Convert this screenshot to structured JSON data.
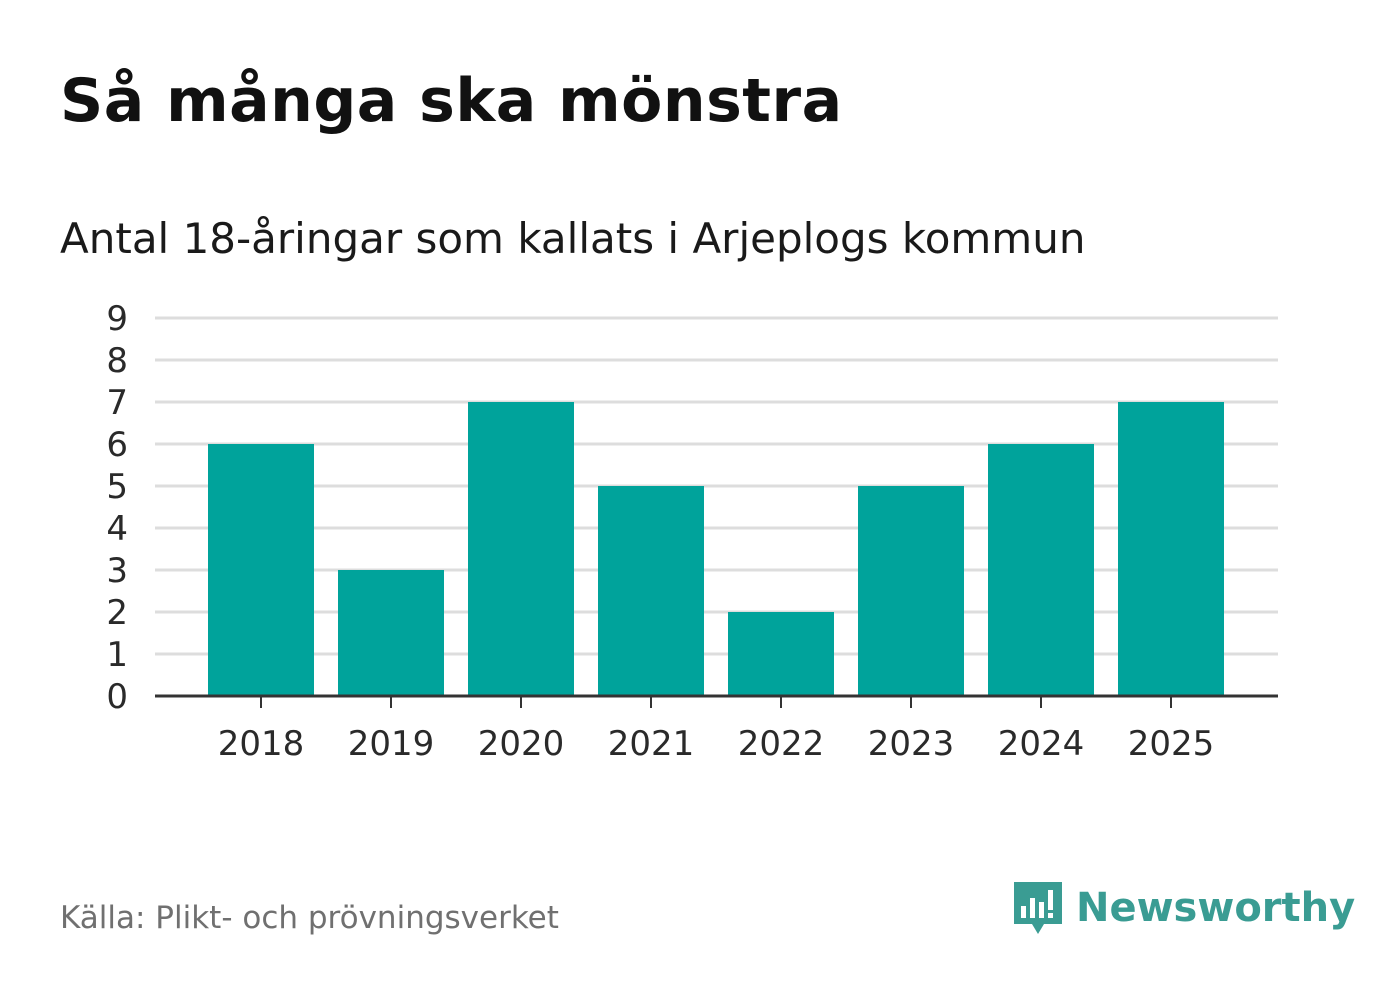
{
  "header": {
    "title": "Så många ska mönstra",
    "subtitle": "Antal 18-åringar som kallats i Arjeplogs kommun"
  },
  "footer": {
    "source": "Källa: Plikt- och prövningsverket",
    "brand": "Newsworthy"
  },
  "colors": {
    "bar": "#00a39b",
    "grid": "#dddddd",
    "axis": "#333333",
    "brand": "#3a9c93"
  },
  "icons": {
    "brand_logo": "bar-chart-bubble-icon"
  },
  "chart_data": {
    "type": "bar",
    "categories": [
      "2018",
      "2019",
      "2020",
      "2021",
      "2022",
      "2023",
      "2024",
      "2025"
    ],
    "values": [
      6,
      3,
      7,
      5,
      2,
      5,
      6,
      7
    ],
    "title": "Så många ska mönstra",
    "subtitle": "Antal 18-åringar som kallats i Arjeplogs kommun",
    "xlabel": "",
    "ylabel": "",
    "ylim": [
      0,
      9
    ],
    "yticks": [
      0,
      1,
      2,
      3,
      4,
      5,
      6,
      7,
      8,
      9
    ],
    "grid": true,
    "legend": "none"
  }
}
